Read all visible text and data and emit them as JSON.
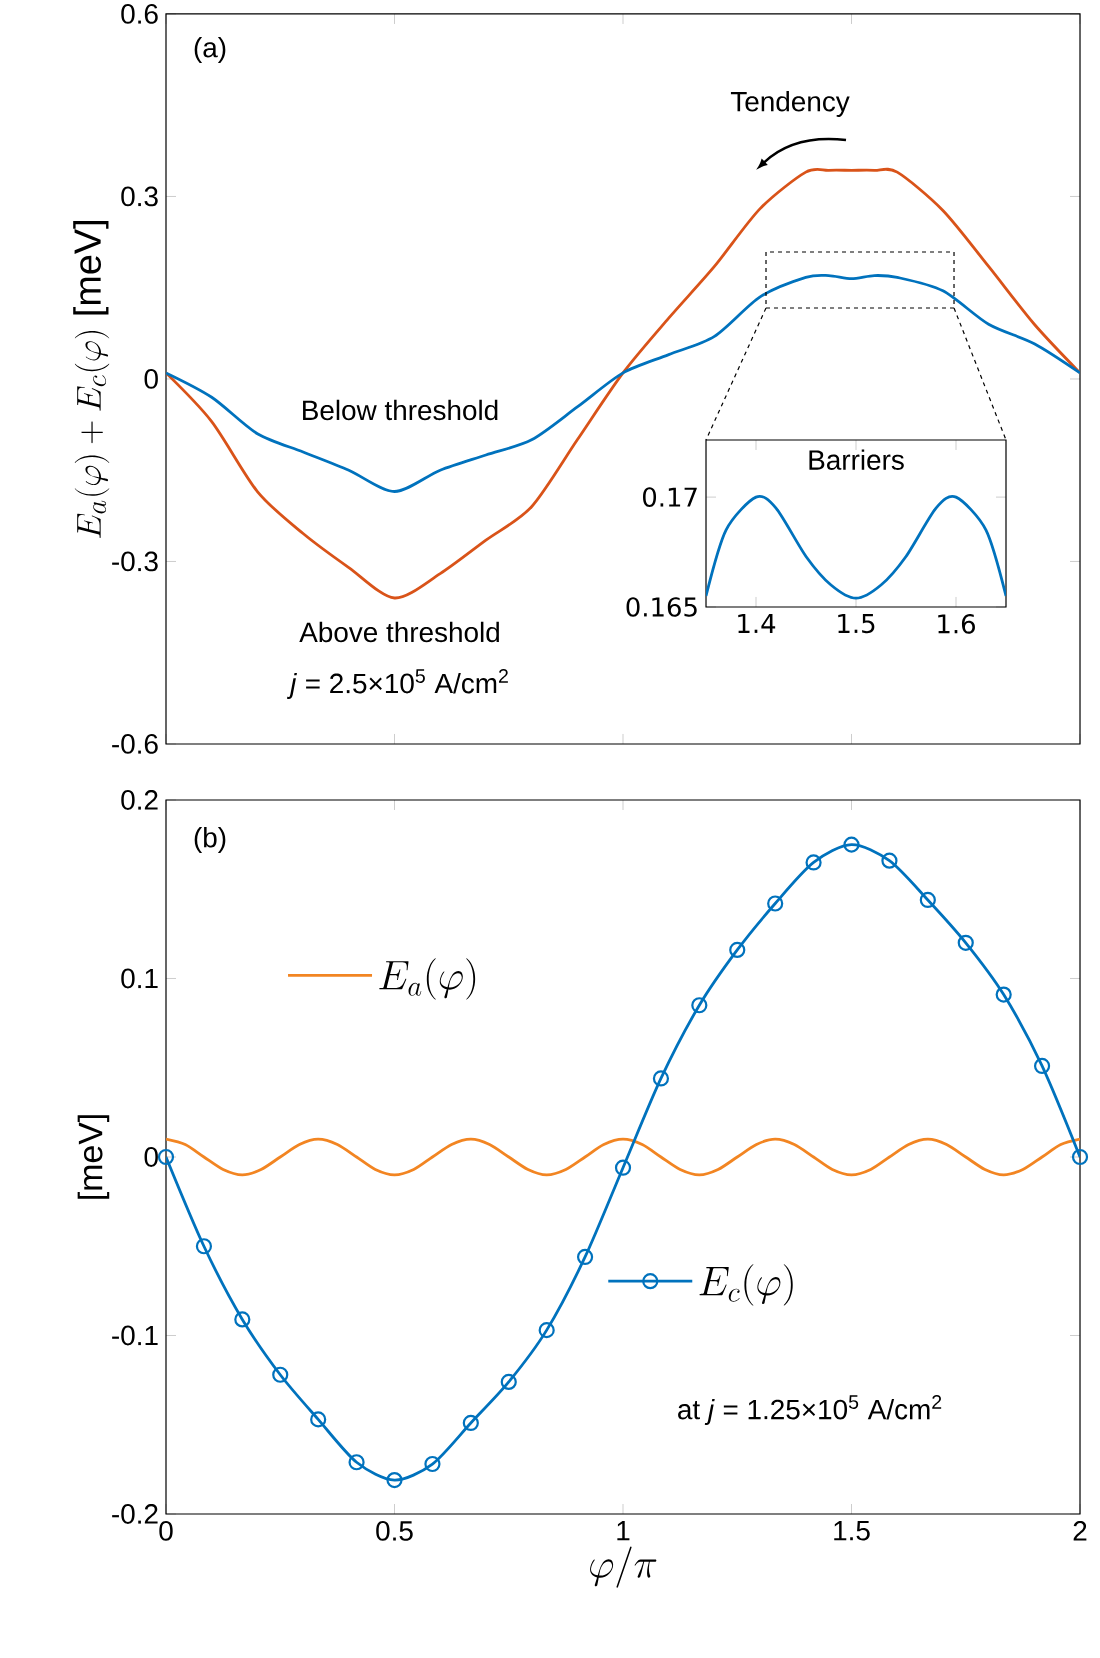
{
  "chart_data": [
    {
      "type": "line",
      "ylabel": "E_a(\\varphi) + E_c(\\varphi)\\ \\mbox{[meV]}",
      "xlim": [
        0,
        2
      ],
      "ylim": [
        -0.6,
        0.6
      ],
      "xticks": [
        0,
        0.5,
        1,
        1.5,
        2
      ],
      "yticks": [
        -0.6,
        -0.3,
        0,
        0.3,
        0.6
      ],
      "tick_labels": "y",
      "x": [
        0,
        0.1,
        0.2,
        0.3,
        0.4,
        0.5,
        0.6,
        0.7,
        0.8,
        0.9,
        1.0,
        1.1,
        1.2,
        1.3,
        1.4,
        1.45,
        1.5,
        1.55,
        1.6,
        1.7,
        1.8,
        1.9,
        2.0
      ],
      "series": [
        {
          "color": "#d95319",
          "values": [
            0.01,
            -0.07,
            -0.185,
            -0.254,
            -0.31,
            -0.36,
            -0.32,
            -0.265,
            -0.21,
            -0.1,
            0.01,
            0.1,
            0.185,
            0.28,
            0.34,
            0.343,
            0.343,
            0.343,
            0.34,
            0.277,
            0.185,
            0.09,
            0.01
          ]
        },
        {
          "color": "#0072bd",
          "values": [
            0.01,
            -0.03,
            -0.09,
            -0.12,
            -0.15,
            -0.185,
            -0.15,
            -0.125,
            -0.1,
            -0.046,
            0.01,
            0.04,
            0.07,
            0.135,
            0.167,
            0.17,
            0.165,
            0.17,
            0.167,
            0.145,
            0.09,
            0.058,
            0.01
          ]
        }
      ],
      "annotations": [
        "(a)",
        "Tendency",
        "Below threshold",
        "Above threshold",
        "*j* = 2.5×10$^{5}$ A/cm$^{2}$"
      ]
    },
    {
      "type": "line",
      "title": "Barriers",
      "xlim": [
        1.35,
        1.65
      ],
      "ylim": [
        0.165,
        0.1726
      ],
      "xticks": [
        1.4,
        1.5,
        1.6
      ],
      "yticks": [
        0.165,
        0.17
      ],
      "x": [
        1.35,
        1.37,
        1.4,
        1.42,
        1.45,
        1.475,
        1.5,
        1.525,
        1.55,
        1.58,
        1.6,
        1.63,
        1.65
      ],
      "series": [
        {
          "color": "#0072bd",
          "values": [
            0.1655,
            0.1685,
            0.17,
            0.1695,
            0.1673,
            0.166,
            0.1654,
            0.166,
            0.1673,
            0.1695,
            0.17,
            0.1685,
            0.1655
          ]
        }
      ]
    },
    {
      "type": "line",
      "xlabel": "\\varphi/\\pi",
      "ylabel": "[meV]",
      "xlim": [
        0,
        2
      ],
      "ylim": [
        -0.2,
        0.2
      ],
      "xticks": [
        0,
        0.5,
        1,
        1.5,
        2
      ],
      "yticks": [
        -0.2,
        -0.1,
        0,
        0.1,
        0.2
      ],
      "legend": "left",
      "series": [
        {
          "name": "E_a(\\varphi)",
          "color": "#f28522",
          "x": [
            0,
            0.042,
            0.083,
            0.125,
            0.167,
            0.208,
            0.25,
            0.292,
            0.333,
            0.375,
            0.417,
            0.458,
            0.5,
            0.542,
            0.583,
            0.625,
            0.667,
            0.708,
            0.75,
            0.792,
            0.833,
            0.875,
            0.917,
            0.958,
            1,
            1.042,
            1.083,
            1.125,
            1.167,
            1.208,
            1.25,
            1.292,
            1.333,
            1.375,
            1.417,
            1.458,
            1.5,
            1.542,
            1.583,
            1.625,
            1.667,
            1.708,
            1.75,
            1.792,
            1.833,
            1.875,
            1.917,
            1.958,
            2
          ],
          "values": [
            0.01,
            0.007,
            0,
            -0.007,
            -0.01,
            -0.007,
            0,
            0.007,
            0.01,
            0.007,
            0,
            -0.007,
            -0.01,
            -0.007,
            0,
            0.007,
            0.01,
            0.007,
            0,
            -0.007,
            -0.01,
            -0.007,
            0,
            0.007,
            0.01,
            0.007,
            0,
            -0.007,
            -0.01,
            -0.007,
            0,
            0.007,
            0.01,
            0.007,
            0,
            -0.007,
            -0.01,
            -0.007,
            0,
            0.007,
            0.01,
            0.007,
            0,
            -0.007,
            -0.01,
            -0.007,
            0,
            0.007,
            0.01
          ]
        },
        {
          "name": "E_c(\\varphi)",
          "color": "#0072bd",
          "marker": "circle",
          "x": [
            0,
            0.083,
            0.167,
            0.25,
            0.333,
            0.417,
            0.5,
            0.583,
            0.667,
            0.75,
            0.833,
            0.917,
            1,
            1.083,
            1.167,
            1.25,
            1.333,
            1.417,
            1.5,
            1.583,
            1.667,
            1.75,
            1.833,
            1.917,
            2
          ],
          "values": [
            0.0,
            -0.05,
            -0.091,
            -0.122,
            -0.147,
            -0.171,
            -0.181,
            -0.172,
            -0.149,
            -0.126,
            -0.097,
            -0.056,
            -0.006,
            0.044,
            0.085,
            0.116,
            0.142,
            0.165,
            0.175,
            0.166,
            0.144,
            0.12,
            0.091,
            0.051,
            0.0
          ]
        }
      ],
      "annotations": [
        "(b)",
        "at *j* = 1.25×10$^{5}$ A/cm$^{2}$"
      ]
    }
  ]
}
